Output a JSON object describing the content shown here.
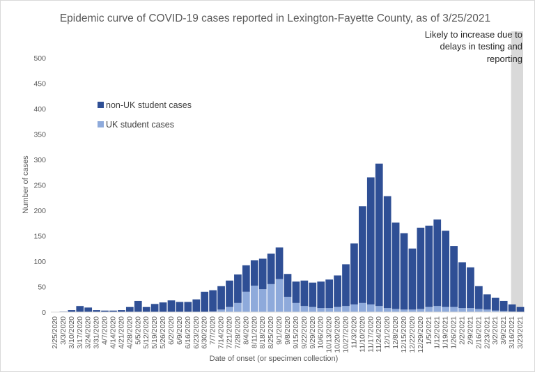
{
  "chart_data": {
    "type": "bar",
    "stacked": true,
    "title": "Epidemic curve of COVID-19 cases reported in Lexington-Fayette County, as of 3/25/2021",
    "xlabel": "Date of onset (or specimen collection)",
    "ylabel": "Number of cases",
    "ylim": [
      0,
      500
    ],
    "yticks": [
      0,
      50,
      100,
      150,
      200,
      250,
      300,
      350,
      400,
      450,
      500
    ],
    "grid": false,
    "legend_position": "left",
    "annotation": [
      "Likely to increase due to",
      "delays in testing and",
      "reporting"
    ],
    "shaded_region_note": "last ~10 days shaded grey",
    "categories": [
      "2/25/2020",
      "3/3/2020",
      "3/10/2020",
      "3/17/2020",
      "3/24/2020",
      "3/31/2020",
      "4/7/2020",
      "4/14/2020",
      "4/21/2020",
      "4/28/2020",
      "5/5/2020",
      "5/12/2020",
      "5/19/2020",
      "5/26/2020",
      "6/2/2020",
      "6/9/2020",
      "6/16/2020",
      "6/23/2020",
      "6/30/2020",
      "7/7/2020",
      "7/14/2020",
      "7/21/2020",
      "7/28/2020",
      "8/4/2020",
      "8/11/2020",
      "8/18/2020",
      "8/25/2020",
      "9/1/2020",
      "9/8/2020",
      "9/15/2020",
      "9/22/2020",
      "9/29/2020",
      "10/6/2020",
      "10/13/2020",
      "10/20/2020",
      "10/27/2020",
      "11/3/2020",
      "11/10/2020",
      "11/17/2020",
      "11/24/2020",
      "12/1/2020",
      "12/8/2020",
      "12/15/2020",
      "12/22/2020",
      "12/29/2020",
      "1/5/2021",
      "1/12/2021",
      "1/19/2021",
      "1/26/2021",
      "2/2/2021",
      "2/9/2021",
      "2/16/2021",
      "2/23/2021",
      "3/2/2021",
      "3/9/2021",
      "3/16/2021",
      "3/23/2021"
    ],
    "series": [
      {
        "name": "non-UK student cases",
        "color": "#2f4f95",
        "values": [
          0,
          1,
          4,
          12,
          9,
          4,
          3,
          3,
          4,
          10,
          22,
          10,
          16,
          19,
          23,
          20,
          20,
          25,
          40,
          42,
          46,
          52,
          56,
          52,
          50,
          60,
          60,
          62,
          45,
          42,
          50,
          48,
          52,
          56,
          62,
          82,
          120,
          190,
          250,
          280,
          220,
          170,
          150,
          120,
          160,
          160,
          170,
          150,
          120,
          90,
          80,
          45,
          30,
          25,
          20,
          14,
          10
        ]
      },
      {
        "name": "UK student cases",
        "color": "#8eaadb",
        "values": [
          0,
          0,
          0,
          0,
          0,
          0,
          0,
          0,
          0,
          0,
          0,
          0,
          0,
          0,
          0,
          0,
          0,
          0,
          0,
          1,
          5,
          10,
          18,
          40,
          52,
          45,
          55,
          65,
          30,
          18,
          12,
          10,
          8,
          8,
          10,
          12,
          15,
          18,
          15,
          12,
          8,
          6,
          5,
          5,
          6,
          10,
          12,
          10,
          10,
          8,
          8,
          6,
          5,
          3,
          2,
          1,
          0
        ]
      }
    ]
  }
}
